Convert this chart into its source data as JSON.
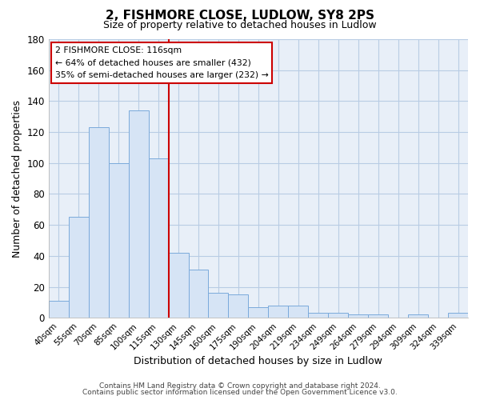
{
  "title": "2, FISHMORE CLOSE, LUDLOW, SY8 2PS",
  "subtitle": "Size of property relative to detached houses in Ludlow",
  "xlabel": "Distribution of detached houses by size in Ludlow",
  "ylabel": "Number of detached properties",
  "bar_labels": [
    "40sqm",
    "55sqm",
    "70sqm",
    "85sqm",
    "100sqm",
    "115sqm",
    "130sqm",
    "145sqm",
    "160sqm",
    "175sqm",
    "190sqm",
    "204sqm",
    "219sqm",
    "234sqm",
    "249sqm",
    "264sqm",
    "279sqm",
    "294sqm",
    "309sqm",
    "324sqm",
    "339sqm"
  ],
  "bar_values": [
    11,
    65,
    123,
    100,
    134,
    103,
    42,
    31,
    16,
    15,
    7,
    8,
    8,
    3,
    3,
    2,
    2,
    0,
    2,
    0,
    3
  ],
  "bar_color": "#d6e4f5",
  "bar_edge_color": "#7aaadb",
  "ylim": [
    0,
    180
  ],
  "yticks": [
    0,
    20,
    40,
    60,
    80,
    100,
    120,
    140,
    160,
    180
  ],
  "vline_x_idx": 6,
  "vline_color": "#cc0000",
  "annotation_title": "2 FISHMORE CLOSE: 116sqm",
  "annotation_line1": "← 64% of detached houses are smaller (432)",
  "annotation_line2": "35% of semi-detached houses are larger (232) →",
  "annotation_box_color": "#ffffff",
  "annotation_box_edge": "#cc0000",
  "footer1": "Contains HM Land Registry data © Crown copyright and database right 2024.",
  "footer2": "Contains public sector information licensed under the Open Government Licence v3.0.",
  "background_color": "#ffffff",
  "plot_bg_color": "#e8eff8",
  "grid_color": "#b8cce4"
}
